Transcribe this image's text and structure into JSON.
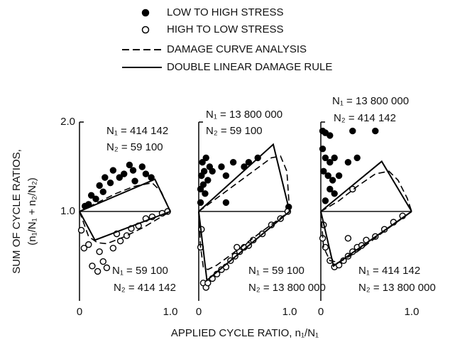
{
  "chart_data": {
    "type": "scatter",
    "xlabel": "APPLIED CYCLE RATIO, n₁/N₁",
    "ylabel": [
      "SUM OF CYCLE RATIOS,",
      "(n₁/N₁ + n₂/N₂)"
    ],
    "xlim": [
      0,
      1
    ],
    "ylim": [
      0,
      2
    ],
    "xticks": [
      0,
      {
        "value": 1,
        "label": "1.0"
      }
    ],
    "yticks": [
      {
        "value": 1,
        "label": "1.0"
      },
      {
        "value": 2,
        "label": "2.0"
      }
    ],
    "series": [
      {
        "name": "LOW TO HIGH STRESS",
        "color": "#000000",
        "marker": "filled"
      },
      {
        "name": "HIGH TO LOW STRESS",
        "color": "#000000",
        "marker": "open"
      },
      {
        "name": "DAMAGE CURVE ANALYSIS",
        "color": "#000000",
        "line": "dashed"
      },
      {
        "name": "DOUBLE LINEAR DAMAGE RULE",
        "color": "#000000",
        "line": "solid"
      }
    ],
    "panels": [
      {
        "annotations": [
          "N₁ = 414 142",
          "N₂ = 59 100",
          "N₁ = 59 100",
          "N₂ = 414 142"
        ],
        "series": [
          {
            "x": [
              0.06,
              0.13,
              0.22,
              0.28,
              0.37,
              0.49,
              0.59,
              0.69,
              0.73,
              0.26,
              0.18,
              0.34,
              0.44,
              0.55,
              0.1,
              0.79,
              0.61
            ],
            "y": [
              1.06,
              1.18,
              1.29,
              1.38,
              1.46,
              1.42,
              1.46,
              1.5,
              1.42,
              1.22,
              1.14,
              1.32,
              1.38,
              1.52,
              1.08,
              1.38,
              1.34
            ]
          },
          {
            "x": [
              0.02,
              0.05,
              0.1,
              0.14,
              0.2,
              0.26,
              0.3,
              0.37,
              0.45,
              0.52,
              0.57,
              0.65,
              0.73,
              0.8,
              0.91,
              0.97,
              0.22,
              0.41
            ],
            "y": [
              0.79,
              0.59,
              0.63,
              0.39,
              0.33,
              0.44,
              0.37,
              0.59,
              0.67,
              0.73,
              0.81,
              0.84,
              0.92,
              0.94,
              0.98,
              1.0,
              0.55,
              0.75
            ]
          },
          {
            "x": [
              0,
              0.2,
              0.4,
              0.6,
              0.8,
              0.9,
              1,
              null,
              0,
              0.1,
              0.2,
              0.3,
              0.5,
              0.7,
              1
            ],
            "y": [
              1,
              1.1,
              1.2,
              1.28,
              1.32,
              1.22,
              1,
              null,
              1,
              0.72,
              0.65,
              0.64,
              0.72,
              0.82,
              1
            ]
          },
          {
            "x": [
              0,
              0.83,
              1,
              null,
              0,
              0.17,
              1
            ],
            "y": [
              1,
              1.36,
              1,
              null,
              1,
              0.68,
              1
            ]
          }
        ]
      },
      {
        "annotations": [
          "N₁ = 13 800 000",
          "N₂ = 59 100",
          "N₁ = 59 100",
          "N₂ = 13 800 000"
        ],
        "series": [
          {
            "x": [
              0.02,
              0.03,
              0.05,
              0.04,
              0.07,
              0.06,
              0.1,
              0.12,
              0.08,
              0.15,
              0.25,
              0.3,
              0.38,
              0.5,
              0.55,
              0.65,
              0.02,
              0.3,
              0.99
            ],
            "y": [
              1.25,
              1.4,
              1.3,
              1.55,
              1.2,
              1.45,
              1.35,
              1.5,
              1.6,
              1.45,
              1.5,
              1.4,
              1.55,
              1.5,
              1.55,
              1.6,
              1.1,
              1.1,
              1.05
            ]
          },
          {
            "x": [
              0.03,
              0.02,
              0.05,
              0.08,
              0.1,
              0.15,
              0.2,
              0.25,
              0.3,
              0.35,
              0.4,
              0.45,
              0.5,
              0.55,
              0.6,
              0.7,
              0.8,
              0.9,
              0.98,
              0.42
            ],
            "y": [
              0.8,
              0.6,
              0.2,
              0.15,
              0.2,
              0.25,
              0.3,
              0.35,
              0.38,
              0.45,
              0.5,
              0.55,
              0.6,
              0.62,
              0.68,
              0.75,
              0.85,
              0.92,
              1.0,
              0.6
            ]
          },
          {
            "x": [
              0,
              0.2,
              0.4,
              0.6,
              0.8,
              0.9,
              0.97,
              1,
              null,
              0,
              0.02,
              0.05,
              0.1,
              0.2,
              0.4,
              0.7,
              1
            ],
            "y": [
              1,
              1.15,
              1.3,
              1.45,
              1.6,
              1.62,
              1.45,
              1,
              null,
              1,
              0.6,
              0.38,
              0.35,
              0.4,
              0.55,
              0.78,
              1
            ]
          },
          {
            "x": [
              0,
              0.82,
              1,
              null,
              0,
              0.09,
              1
            ],
            "y": [
              1,
              1.75,
              1,
              null,
              1,
              0.23,
              1
            ]
          }
        ]
      },
      {
        "annotations": [
          "N₁ = 13 800 000",
          "N₂ = 414 142",
          "N₁ = 414 142",
          "N₂ = 13 800 000"
        ],
        "series": [
          {
            "x": [
              0.02,
              0.05,
              0.1,
              0.02,
              0.05,
              0.1,
              0.15,
              0.03,
              0.08,
              0.13,
              0.2,
              0.1,
              0.15,
              0.3,
              0.4,
              0.6,
              0.35,
              0.05
            ],
            "y": [
              1.9,
              1.88,
              1.85,
              1.7,
              1.6,
              1.55,
              1.6,
              1.45,
              1.4,
              1.35,
              1.4,
              1.25,
              1.2,
              1.55,
              1.6,
              1.9,
              1.9,
              1.12
            ]
          },
          {
            "x": [
              0.03,
              0.02,
              0.05,
              0.1,
              0.15,
              0.2,
              0.25,
              0.3,
              0.35,
              0.4,
              0.45,
              0.5,
              0.6,
              0.7,
              0.8,
              0.9,
              0.3,
              0.35
            ],
            "y": [
              0.85,
              0.7,
              0.6,
              0.45,
              0.38,
              0.4,
              0.45,
              0.5,
              0.55,
              0.6,
              0.62,
              0.68,
              0.72,
              0.8,
              0.88,
              0.95,
              0.7,
              1.25
            ]
          },
          {
            "x": [
              0,
              0.2,
              0.4,
              0.6,
              0.75,
              0.85,
              0.95,
              1,
              null,
              0,
              0.03,
              0.1,
              0.2,
              0.4,
              0.7,
              1
            ],
            "y": [
              1,
              1.12,
              1.28,
              1.42,
              1.45,
              1.35,
              1.15,
              1,
              null,
              1,
              0.6,
              0.45,
              0.43,
              0.55,
              0.78,
              1
            ]
          },
          {
            "x": [
              0,
              0.67,
              1,
              null,
              0,
              0.14,
              1
            ],
            "y": [
              1,
              1.56,
              1,
              null,
              1,
              0.39,
              1
            ]
          }
        ]
      }
    ]
  }
}
